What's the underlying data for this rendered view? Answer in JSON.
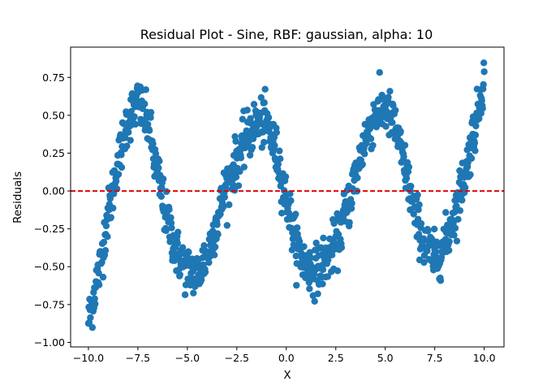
{
  "chart_data": {
    "type": "scatter",
    "title": "Residual Plot - Sine, RBF: gaussian, alpha: 10",
    "xlabel": "X",
    "ylabel": "Residuals",
    "xlim": [
      -10.9,
      11.0
    ],
    "ylim": [
      -1.03,
      0.95
    ],
    "xticks": [
      -10.0,
      -7.5,
      -5.0,
      -2.5,
      0.0,
      2.5,
      5.0,
      7.5,
      10.0
    ],
    "xtick_labels": [
      "−10.0",
      "−7.5",
      "−5.0",
      "−2.5",
      "0.0",
      "2.5",
      "5.0",
      "7.5",
      "10.0"
    ],
    "yticks": [
      -1.0,
      -0.75,
      -0.5,
      -0.25,
      0.0,
      0.25,
      0.5,
      0.75
    ],
    "ytick_labels": [
      "−1.00",
      "−0.75",
      "−0.50",
      "−0.25",
      "0.00",
      "0.25",
      "0.50",
      "0.75"
    ],
    "grid": false,
    "reference_line": {
      "y": 0.0,
      "style": "dashed",
      "color": "#e00000"
    },
    "point_color": "#1f77b4",
    "series": [
      {
        "approximate_curve": [
          [
            -10.0,
            -0.85
          ],
          [
            -9.5,
            -0.55
          ],
          [
            -9.0,
            -0.15
          ],
          [
            -8.5,
            0.2
          ],
          [
            -8.0,
            0.48
          ],
          [
            -7.5,
            0.58
          ],
          [
            -7.0,
            0.45
          ],
          [
            -6.5,
            0.1
          ],
          [
            -6.0,
            -0.2
          ],
          [
            -5.5,
            -0.42
          ],
          [
            -5.0,
            -0.52
          ],
          [
            -4.5,
            -0.55
          ],
          [
            -4.0,
            -0.42
          ],
          [
            -3.5,
            -0.2
          ],
          [
            -3.0,
            0.05
          ],
          [
            -2.5,
            0.2
          ],
          [
            -2.0,
            0.35
          ],
          [
            -1.5,
            0.45
          ],
          [
            -1.0,
            0.45
          ],
          [
            -0.5,
            0.25
          ],
          [
            0.0,
            -0.05
          ],
          [
            0.5,
            -0.35
          ],
          [
            1.0,
            -0.5
          ],
          [
            1.5,
            -0.52
          ],
          [
            2.0,
            -0.45
          ],
          [
            2.5,
            -0.35
          ],
          [
            3.0,
            -0.15
          ],
          [
            3.5,
            0.1
          ],
          [
            4.0,
            0.35
          ],
          [
            4.5,
            0.5
          ],
          [
            5.0,
            0.55
          ],
          [
            5.5,
            0.42
          ],
          [
            6.0,
            0.15
          ],
          [
            6.5,
            -0.15
          ],
          [
            7.0,
            -0.35
          ],
          [
            7.5,
            -0.45
          ],
          [
            8.0,
            -0.35
          ],
          [
            8.5,
            -0.15
          ],
          [
            9.0,
            0.1
          ],
          [
            9.5,
            0.4
          ],
          [
            10.0,
            0.75
          ]
        ],
        "n_points": 1000,
        "noise": 0.08
      }
    ]
  }
}
